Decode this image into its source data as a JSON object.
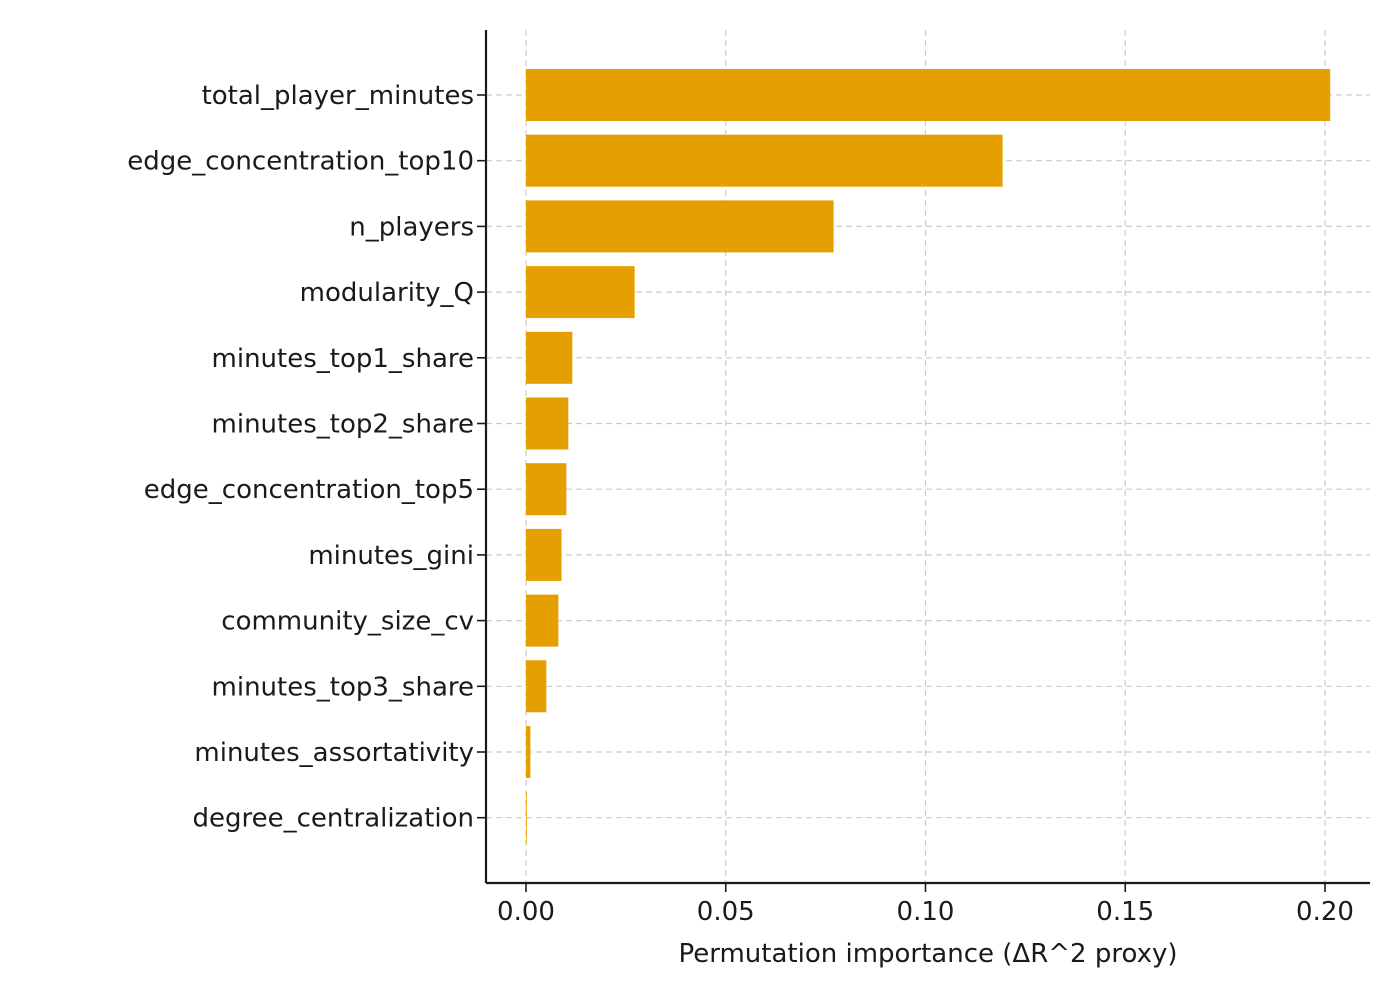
{
  "chart_data": {
    "type": "bar",
    "orientation": "horizontal",
    "title": "",
    "xlabel": "Permutation importance (ΔR^2 proxy)",
    "ylabel": "",
    "xlim": [
      -0.01,
      0.2115
    ],
    "grid": true,
    "bar_color": "#E69F00",
    "categories": [
      "total_player_minutes",
      "edge_concentration_top10",
      "n_players",
      "modularity_Q",
      "minutes_top1_share",
      "minutes_top2_share",
      "edge_concentration_top5",
      "minutes_gini",
      "community_size_cv",
      "minutes_top3_share",
      "minutes_assortativity",
      "degree_centralization"
    ],
    "values": [
      0.2013,
      0.1193,
      0.077,
      0.0272,
      0.0116,
      0.0106,
      0.0101,
      0.0089,
      0.0081,
      0.0051,
      0.0011,
      0.0002
    ],
    "x_ticks": [
      0.0,
      0.05,
      0.1,
      0.15,
      0.2
    ],
    "x_tick_labels": [
      "0.00",
      "0.05",
      "0.10",
      "0.15",
      "0.20"
    ]
  }
}
